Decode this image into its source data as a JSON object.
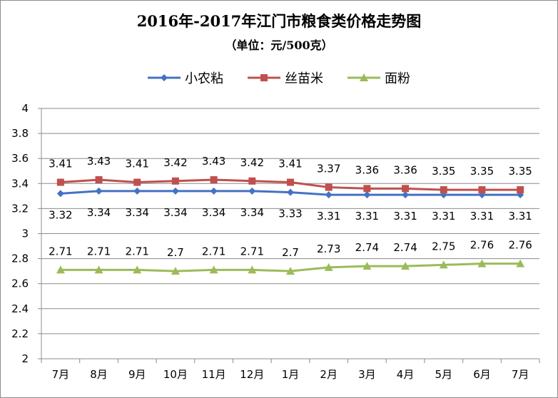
{
  "chart_data": {
    "type": "line",
    "title": "2016年-2017年江门市粮食类价格走势图",
    "subtitle": "（单位：元/500克）",
    "categories": [
      "7月",
      "8月",
      "9月",
      "10月",
      "11月",
      "12月",
      "1月",
      "2月",
      "3月",
      "4月",
      "5月",
      "6月",
      "7月"
    ],
    "ylim": [
      2,
      4
    ],
    "yticks": [
      "2",
      "2.2",
      "2.4",
      "2.6",
      "2.8",
      "3",
      "3.2",
      "3.4",
      "3.6",
      "3.8",
      "4"
    ],
    "legend_position": "top",
    "grid": "horizontal",
    "series": [
      {
        "name": "小农粘",
        "color": "#4472C4",
        "marker": "diamond",
        "values": [
          3.32,
          3.34,
          3.34,
          3.34,
          3.34,
          3.34,
          3.33,
          3.31,
          3.31,
          3.31,
          3.31,
          3.31,
          3.31
        ],
        "labels": [
          "3.32",
          "3.34",
          "3.34",
          "3.34",
          "3.34",
          "3.34",
          "3.33",
          "3.31",
          "3.31",
          "3.31",
          "3.31",
          "3.31",
          "3.31"
        ],
        "label_side": "below"
      },
      {
        "name": "丝苗米",
        "color": "#C0504D",
        "marker": "square",
        "values": [
          3.41,
          3.43,
          3.41,
          3.42,
          3.43,
          3.42,
          3.41,
          3.37,
          3.36,
          3.36,
          3.35,
          3.35,
          3.35
        ],
        "labels": [
          "3.41",
          "3.43",
          "3.41",
          "3.42",
          "3.43",
          "3.42",
          "3.41",
          "3.37",
          "3.36",
          "3.36",
          "3.35",
          "3.35",
          "3.35"
        ],
        "label_side": "above"
      },
      {
        "name": "面粉",
        "color": "#9BBB59",
        "marker": "triangle",
        "values": [
          2.71,
          2.71,
          2.71,
          2.7,
          2.71,
          2.71,
          2.7,
          2.73,
          2.74,
          2.74,
          2.75,
          2.76,
          2.76
        ],
        "labels": [
          "2.71",
          "2.71",
          "2.71",
          "2.7",
          "2.71",
          "2.71",
          "2.7",
          "2.73",
          "2.74",
          "2.74",
          "2.75",
          "2.76",
          "2.76"
        ],
        "label_side": "above"
      }
    ]
  }
}
